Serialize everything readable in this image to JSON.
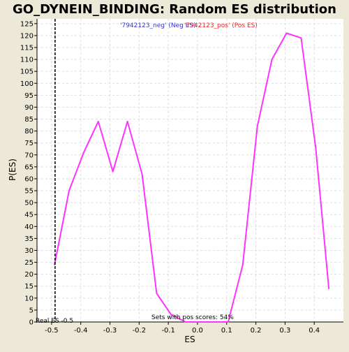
{
  "colors": {
    "background": "#ece9d8",
    "plot_background": "#ffffff",
    "series_line": "#ff33ff",
    "neg_label": "#3333cc",
    "pos_label": "#ee2222",
    "real_es_line": "#000000",
    "grid": "#dddddd",
    "axis": "#000000"
  },
  "chart_data": {
    "type": "line",
    "title": "GO_DYNEIN_BINDING: Random ES distribution",
    "xlabel": "ES",
    "ylabel": "P(ES)",
    "xlim": [
      -0.55,
      0.5
    ],
    "ylim": [
      0,
      127
    ],
    "x_ticks": [
      -0.5,
      -0.4,
      -0.3,
      -0.2,
      -0.1,
      0.0,
      0.1,
      0.2,
      0.3,
      0.4
    ],
    "x_tick_labels": [
      "-0.5",
      "-0.4",
      "-0.3",
      "-0.2",
      "-0.1",
      "0.0",
      "0.1",
      "0.2",
      "0.3",
      "0.4"
    ],
    "y_ticks": [
      0,
      5,
      10,
      15,
      20,
      25,
      30,
      35,
      40,
      45,
      50,
      55,
      60,
      65,
      70,
      75,
      80,
      85,
      90,
      95,
      100,
      105,
      110,
      115,
      120,
      125
    ],
    "grid": true,
    "series": [
      {
        "x": [
          -0.49,
          -0.44,
          -0.39,
          -0.34,
          -0.29,
          -0.24,
          -0.19,
          -0.14,
          -0.09,
          -0.04,
          0.01,
          0.06,
          0.105,
          0.155,
          0.205,
          0.255,
          0.305,
          0.355,
          0.405,
          0.45
        ],
        "values": [
          24,
          55,
          71,
          84,
          63,
          84,
          62,
          12,
          3,
          0,
          0,
          0,
          0,
          24,
          82,
          110,
          121,
          119,
          73,
          14
        ]
      }
    ],
    "legend": {
      "neg_label": "'7942123_neg' (Neg ES)",
      "pos_label": "'7942123_pos' (Pos ES)"
    },
    "real_es": {
      "value": -0.488,
      "label": "Real ES -0.5"
    },
    "annotation": "Sets with pos scores: 54%"
  }
}
